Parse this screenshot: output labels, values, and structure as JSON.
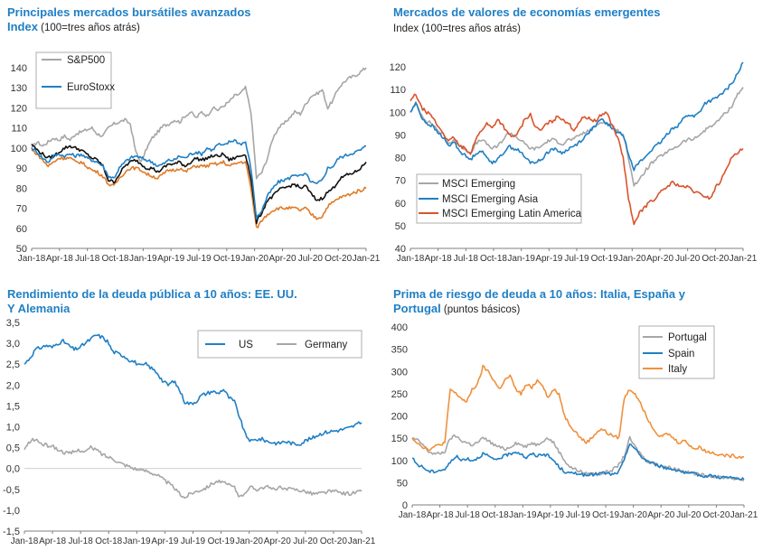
{
  "chart_data": [
    {
      "type": "line",
      "title": "Principales mercados bursátiles avanzados",
      "subtitle_label": "Index",
      "subtitle_rest": " (100=tres años atrás)",
      "x_ticks": [
        "Jan-18",
        "Apr-18",
        "Jul-18",
        "Oct-18",
        "Jan-19",
        "Apr-19",
        "Jul-19",
        "Oct-19",
        "Jan-20",
        "Apr-20",
        "Jul-20",
        "Oct-20",
        "Jan-21"
      ],
      "ylim": [
        50,
        140
      ],
      "y_ticks": [
        50,
        60,
        70,
        80,
        90,
        100,
        110,
        120,
        130,
        140
      ],
      "legend_position": "top-left",
      "series": [
        {
          "name": "S&P500",
          "color": "#a6a6a6",
          "legend": true,
          "values": [
            100,
            103,
            101,
            103,
            105,
            104,
            106,
            104,
            107,
            108,
            109,
            110,
            107,
            106,
            110,
            112,
            113,
            114,
            112,
            98,
            93,
            100,
            105,
            108,
            111,
            112,
            114,
            113,
            116,
            118,
            115,
            118,
            116,
            120,
            119,
            121,
            123,
            126,
            127,
            130,
            118,
            85,
            88,
            95,
            105,
            110,
            112,
            115,
            118,
            117,
            122,
            126,
            127,
            129,
            120,
            124,
            130,
            133,
            135,
            136,
            138,
            140
          ]
        },
        {
          "name": "EuroStoxx",
          "color": "#1f7fc4",
          "legend": true,
          "values": [
            100,
            98,
            95,
            93,
            96,
            97,
            96,
            97,
            96,
            97,
            95,
            94,
            93,
            91,
            86,
            85,
            90,
            93,
            95,
            96,
            95,
            94,
            93,
            91,
            92,
            94,
            94,
            96,
            95,
            97,
            98,
            97,
            100,
            99,
            102,
            101,
            103,
            104,
            102,
            103,
            90,
            65,
            69,
            76,
            80,
            83,
            84,
            85,
            87,
            86,
            87,
            83,
            82,
            84,
            90,
            91,
            95,
            96,
            97,
            98,
            99,
            101
          ]
        },
        {
          "name": "",
          "color": "#111111",
          "legend": false,
          "values": [
            102,
            99,
            97,
            95,
            96,
            98,
            100,
            101,
            100,
            99,
            97,
            95,
            94,
            91,
            84,
            83,
            87,
            91,
            93,
            94,
            92,
            90,
            90,
            88,
            90,
            92,
            92,
            93,
            91,
            93,
            95,
            94,
            95,
            96,
            96,
            97,
            94,
            95,
            96,
            97,
            85,
            63,
            68,
            74,
            76,
            79,
            80,
            81,
            82,
            80,
            81,
            77,
            74,
            75,
            78,
            80,
            84,
            86,
            87,
            88,
            90,
            93
          ]
        },
        {
          "name": "",
          "color": "#e07b27",
          "legend": false,
          "values": [
            99,
            97,
            94,
            91,
            93,
            95,
            95,
            95,
            93,
            93,
            91,
            89,
            88,
            86,
            82,
            81,
            85,
            88,
            90,
            90,
            89,
            87,
            86,
            85,
            87,
            89,
            89,
            90,
            88,
            90,
            91,
            91,
            91,
            92,
            92,
            93,
            91,
            92,
            93,
            93,
            80,
            60,
            64,
            67,
            69,
            70,
            70,
            70,
            70,
            69,
            70,
            67,
            65,
            66,
            71,
            73,
            75,
            76,
            77,
            78,
            79,
            80
          ]
        }
      ]
    },
    {
      "type": "line",
      "title": "Mercados de valores de economías emergentes",
      "subtitle_rest": "Index (100=tres años atrás)",
      "x_ticks": [
        "Jan-18",
        "Apr-18",
        "Jul-18",
        "Oct-18",
        "Jan-19",
        "Apr-19",
        "Jul-19",
        "Oct-19",
        "Jan-20",
        "Apr-20",
        "Jul-20",
        "Oct-20",
        "Jan-21"
      ],
      "ylim": [
        40,
        120
      ],
      "y_ticks": [
        40,
        50,
        60,
        70,
        80,
        90,
        100,
        110,
        120
      ],
      "legend_position": "bottom-left",
      "series": [
        {
          "name": "MSCI Emerging",
          "color": "#a6a6a6",
          "values": [
            100,
            104,
            99,
            96,
            95,
            92,
            90,
            86,
            88,
            85,
            84,
            82,
            86,
            88,
            86,
            84,
            85,
            88,
            91,
            90,
            88,
            86,
            84,
            84,
            85,
            87,
            88,
            87,
            86,
            88,
            88,
            90,
            91,
            92,
            94,
            96,
            95,
            94,
            92,
            90,
            80,
            68,
            70,
            74,
            77,
            79,
            81,
            82,
            84,
            85,
            87,
            88,
            88,
            90,
            92,
            94,
            95,
            98,
            100,
            103,
            108,
            111
          ]
        },
        {
          "name": "MSCI Emerging Asia",
          "color": "#1f7fc4",
          "values": [
            100,
            104,
            98,
            95,
            94,
            91,
            89,
            85,
            87,
            83,
            81,
            79,
            82,
            83,
            80,
            78,
            79,
            82,
            85,
            84,
            83,
            80,
            78,
            78,
            79,
            82,
            84,
            83,
            82,
            84,
            85,
            87,
            89,
            92,
            94,
            97,
            95,
            93,
            91,
            90,
            82,
            75,
            78,
            80,
            83,
            85,
            87,
            90,
            93,
            94,
            97,
            99,
            98,
            100,
            104,
            105,
            106,
            108,
            110,
            113,
            117,
            122
          ]
        },
        {
          "name": "MSCI Emerging Latin America",
          "color": "#d9542b",
          "values": [
            105,
            108,
            102,
            100,
            98,
            94,
            91,
            87,
            89,
            85,
            84,
            82,
            88,
            92,
            95,
            93,
            97,
            94,
            90,
            89,
            92,
            97,
            99,
            93,
            92,
            95,
            96,
            98,
            97,
            95,
            92,
            96,
            98,
            97,
            96,
            99,
            100,
            94,
            89,
            80,
            62,
            50,
            56,
            58,
            61,
            62,
            65,
            67,
            69,
            68,
            67,
            67,
            65,
            64,
            63,
            62,
            67,
            70,
            76,
            80,
            82,
            84
          ]
        }
      ]
    },
    {
      "type": "line",
      "title_line1": "Rendimiento de la deuda pública a 10 años: EE. UU.",
      "title_line2": "Y Alemania",
      "x_ticks": [
        "Jan-18",
        "Apr-18",
        "Jul-18",
        "Oct-18",
        "Jan-19",
        "Apr-19",
        "Jul-19",
        "Oct-19",
        "Jan-20",
        "Apr-20",
        "Jul-20",
        "Oct-20",
        "Jan-21"
      ],
      "ylim": [
        -1.5,
        3.5
      ],
      "y_ticks": [
        "3,5",
        "3,0",
        "2,5",
        "2,0",
        "1,5",
        "1,0",
        "0,5",
        "0,0",
        "-0,5",
        "-1,0",
        "-1,5"
      ],
      "legend_position": "top-right",
      "series": [
        {
          "name": "US",
          "color": "#1f7fc4",
          "values": [
            2.5,
            2.65,
            2.85,
            2.9,
            2.95,
            2.9,
            3.0,
            3.05,
            2.95,
            2.85,
            2.9,
            3.0,
            3.1,
            3.2,
            3.15,
            3.05,
            2.8,
            2.75,
            2.7,
            2.6,
            2.55,
            2.45,
            2.5,
            2.4,
            2.3,
            2.1,
            2.0,
            2.1,
            1.9,
            1.6,
            1.55,
            1.6,
            1.75,
            1.8,
            1.85,
            1.8,
            1.9,
            1.7,
            1.6,
            1.2,
            0.8,
            0.65,
            0.7,
            0.7,
            0.65,
            0.62,
            0.6,
            0.65,
            0.62,
            0.58,
            0.6,
            0.68,
            0.72,
            0.8,
            0.85,
            0.88,
            0.9,
            0.92,
            0.95,
            0.98,
            1.05,
            1.1
          ]
        },
        {
          "name": "Germany",
          "color": "#a6a6a6",
          "values": [
            0.45,
            0.65,
            0.7,
            0.6,
            0.55,
            0.55,
            0.45,
            0.4,
            0.35,
            0.4,
            0.45,
            0.4,
            0.5,
            0.45,
            0.35,
            0.28,
            0.25,
            0.15,
            0.1,
            0.05,
            0.0,
            -0.05,
            -0.05,
            -0.1,
            -0.15,
            -0.25,
            -0.35,
            -0.45,
            -0.6,
            -0.7,
            -0.6,
            -0.55,
            -0.5,
            -0.45,
            -0.35,
            -0.3,
            -0.35,
            -0.4,
            -0.45,
            -0.7,
            -0.55,
            -0.45,
            -0.5,
            -0.45,
            -0.45,
            -0.5,
            -0.45,
            -0.5,
            -0.5,
            -0.5,
            -0.52,
            -0.55,
            -0.6,
            -0.6,
            -0.58,
            -0.55,
            -0.55,
            -0.57,
            -0.6,
            -0.6,
            -0.57,
            -0.55
          ]
        }
      ]
    },
    {
      "type": "line",
      "title_line1": "Prima de riesgo de deuda a 10 años: Italia, España y",
      "title_line2": "Portugal",
      "subtitle_rest": " (puntos básicos)",
      "x_ticks": [
        "Jan-18",
        "Apr-18",
        "Jul-18",
        "Oct-18",
        "Jan-19",
        "Apr-19",
        "Jul-19",
        "Oct-19",
        "Jan-20",
        "Apr-20",
        "Jul-20",
        "Oct-20",
        "Jan-21"
      ],
      "ylim": [
        0,
        400
      ],
      "y_ticks": [
        0,
        50,
        100,
        150,
        200,
        250,
        300,
        350,
        400
      ],
      "legend_position": "top-right",
      "series": [
        {
          "name": "Portugal",
          "color": "#a6a6a6",
          "values": [
            150,
            145,
            135,
            120,
            115,
            115,
            120,
            150,
            155,
            145,
            140,
            135,
            140,
            150,
            145,
            135,
            130,
            125,
            130,
            140,
            135,
            130,
            140,
            135,
            145,
            150,
            140,
            120,
            100,
            85,
            80,
            75,
            70,
            70,
            68,
            72,
            75,
            80,
            90,
            110,
            150,
            130,
            115,
            100,
            95,
            90,
            88,
            85,
            82,
            80,
            75,
            72,
            70,
            68,
            66,
            65,
            63,
            62,
            62,
            60,
            58,
            55
          ]
        },
        {
          "name": "Spain",
          "color": "#1f7fc4",
          "values": [
            105,
            90,
            85,
            75,
            75,
            78,
            80,
            95,
            110,
            100,
            105,
            100,
            105,
            115,
            110,
            100,
            105,
            110,
            115,
            120,
            115,
            105,
            115,
            110,
            115,
            110,
            100,
            85,
            75,
            70,
            72,
            70,
            65,
            68,
            70,
            72,
            70,
            68,
            75,
            100,
            140,
            125,
            110,
            100,
            95,
            90,
            85,
            82,
            80,
            78,
            72,
            70,
            70,
            66,
            65,
            66,
            63,
            62,
            62,
            60,
            58,
            57
          ]
        },
        {
          "name": "Italy",
          "color": "#f0903c",
          "values": [
            150,
            140,
            130,
            125,
            130,
            135,
            140,
            260,
            250,
            240,
            230,
            260,
            270,
            310,
            300,
            280,
            260,
            280,
            290,
            260,
            250,
            270,
            265,
            280,
            270,
            240,
            260,
            250,
            200,
            180,
            165,
            150,
            140,
            150,
            165,
            170,
            160,
            155,
            150,
            240,
            260,
            250,
            230,
            200,
            180,
            160,
            155,
            160,
            150,
            140,
            145,
            135,
            125,
            130,
            120,
            118,
            115,
            112,
            110,
            110,
            108,
            108
          ]
        }
      ]
    }
  ]
}
